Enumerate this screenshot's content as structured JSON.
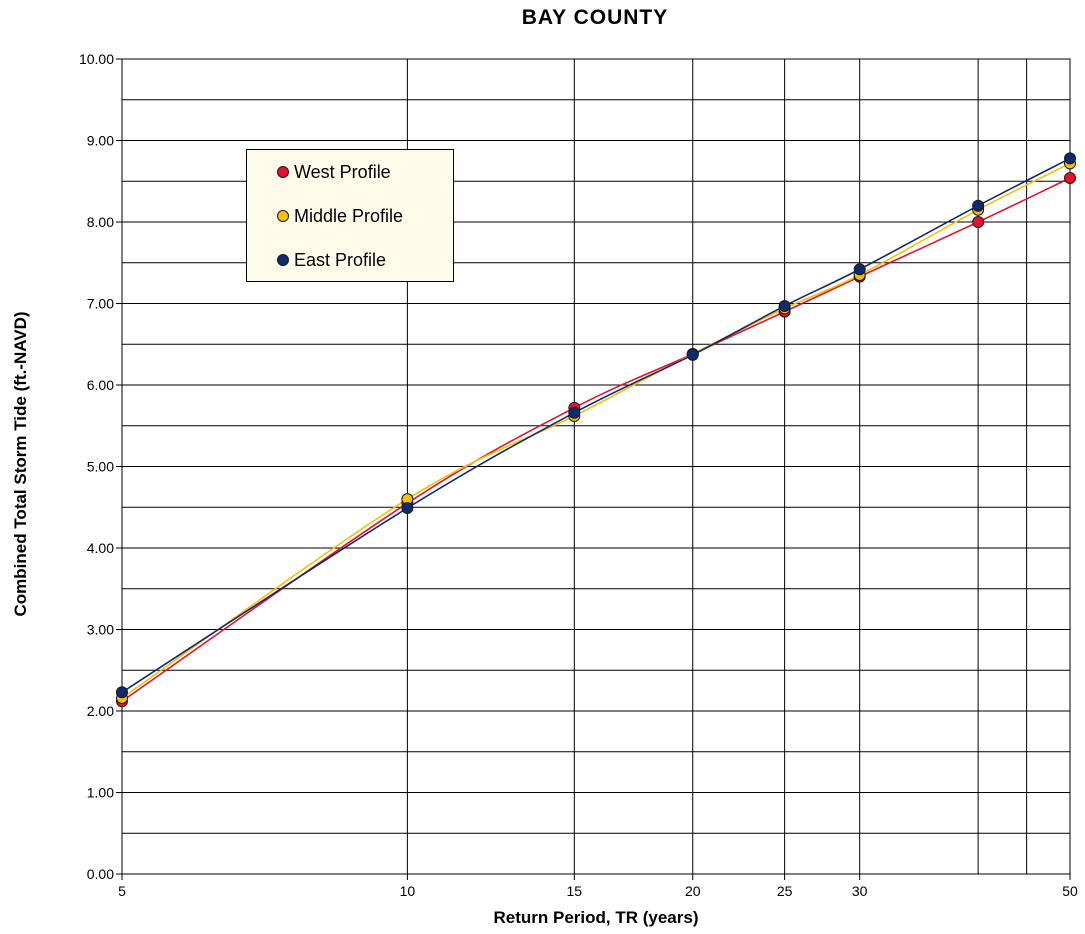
{
  "chart_data": {
    "type": "line",
    "title": "BAY  COUNTY",
    "xlabel": "Return Period, TR (years)",
    "ylabel": "Combined Total Storm Tide (ft.-NAVD)",
    "x_scale": "log",
    "xlim": [
      5,
      50
    ],
    "ylim": [
      0,
      10
    ],
    "x_ticks": [
      5,
      10,
      15,
      20,
      25,
      30,
      50
    ],
    "x_tick_labels": [
      "5",
      "10",
      "15",
      "20",
      "25",
      "30",
      "50"
    ],
    "x_minor_gridlines": [
      40,
      45
    ],
    "y_ticks": [
      0,
      1,
      2,
      3,
      4,
      5,
      6,
      7,
      8,
      9,
      10
    ],
    "y_tick_labels": [
      "0.00",
      "1.00",
      "2.00",
      "3.00",
      "4.00",
      "5.00",
      "6.00",
      "7.00",
      "8.00",
      "9.00",
      "10.00"
    ],
    "y_minor_step": 0.5,
    "grid": true,
    "legend_position": "upper-left",
    "x": [
      5,
      10,
      15,
      20,
      25,
      30,
      40,
      50
    ],
    "series": [
      {
        "name": "West Profile",
        "color": "#e8102a",
        "values": [
          2.12,
          4.55,
          5.72,
          6.38,
          6.9,
          7.33,
          8.0,
          8.54
        ]
      },
      {
        "name": "Middle Profile",
        "color": "#f6c000",
        "values": [
          2.16,
          4.6,
          5.62,
          6.38,
          6.94,
          7.35,
          8.15,
          8.72
        ]
      },
      {
        "name": "East Profile",
        "color": "#0f2a6e",
        "values": [
          2.23,
          4.49,
          5.66,
          6.37,
          6.97,
          7.42,
          8.2,
          8.78
        ]
      }
    ]
  }
}
